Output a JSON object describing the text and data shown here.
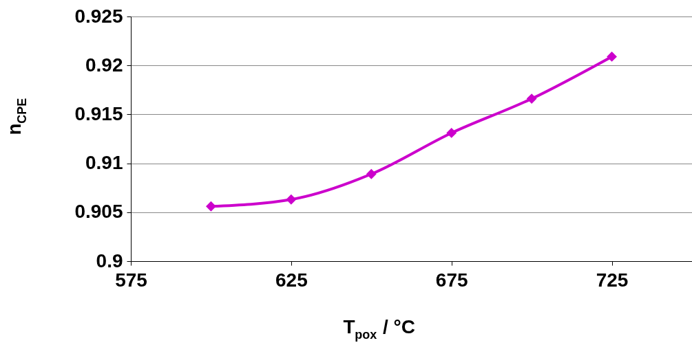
{
  "chart_data": {
    "type": "line",
    "xlabel": "T$_{pox}$ / °C",
    "ylabel": "n$_{CPE}$",
    "x": [
      600,
      625,
      650,
      675,
      700,
      725
    ],
    "series": [
      {
        "color": "#cc00cc",
        "values": [
          0.9056,
          0.9063,
          0.9089,
          0.9131,
          0.9166,
          0.9209
        ]
      }
    ],
    "xlim": [
      575,
      750
    ],
    "xticks": [
      575,
      625,
      675,
      725
    ],
    "ylim": [
      0.9,
      0.925
    ],
    "yticks": [
      {
        "value": 0.9,
        "label": "0.9"
      },
      {
        "value": 0.905,
        "label": "0.905"
      },
      {
        "value": 0.91,
        "label": "0.91"
      },
      {
        "value": 0.915,
        "label": "0.915"
      },
      {
        "value": 0.92,
        "label": "0.92"
      },
      {
        "value": 0.925,
        "label": "0.925"
      }
    ],
    "grid": "y",
    "marker": "diamond",
    "line_style": "solid"
  }
}
